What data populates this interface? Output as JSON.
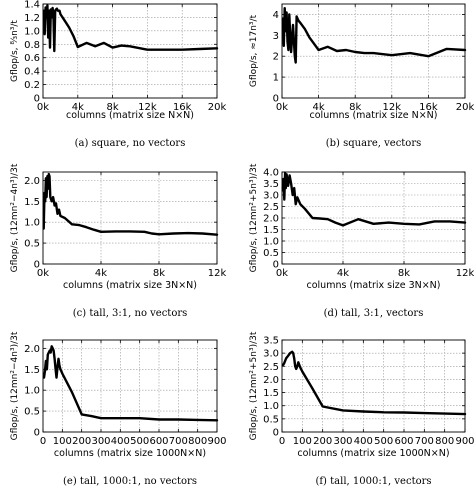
{
  "chart_data": [
    {
      "type": "line",
      "caption": "(a) square, no vectors",
      "ylabel": "Gflop/s,  ⁸⁄₃n³/t",
      "xlabel": "columns (matrix size N×N)",
      "xlim": [
        0,
        20000
      ],
      "ylim": [
        0,
        1.4
      ],
      "xticks": [
        0,
        4000,
        8000,
        12000,
        16000,
        20000
      ],
      "xtick_labels": [
        "0k",
        "4k",
        "8k",
        "12k",
        "16k",
        "20k"
      ],
      "yticks": [
        0,
        0.2,
        0.4,
        0.6,
        0.8,
        1.0,
        1.2,
        1.4
      ],
      "ytick_labels": [
        "0",
        "0.2",
        "0.4",
        "0.6",
        "0.8",
        "1.0",
        "1.2",
        "1.4"
      ],
      "grid": true,
      "x": [
        100,
        200,
        300,
        400,
        500,
        600,
        700,
        800,
        900,
        1000,
        1100,
        1200,
        1300,
        1400,
        1500,
        1600,
        1700,
        1800,
        1900,
        2000,
        2500,
        3000,
        3500,
        4000,
        5000,
        6000,
        7000,
        8000,
        9000,
        10000,
        12000,
        14000,
        16000,
        18000,
        20000
      ],
      "y": [
        1.3,
        0.95,
        1.35,
        1.2,
        1.38,
        0.9,
        1.3,
        0.75,
        1.32,
        1.2,
        1.34,
        1.25,
        0.7,
        1.3,
        1.32,
        1.33,
        1.3,
        1.3,
        1.3,
        1.25,
        1.15,
        1.05,
        0.92,
        0.76,
        0.82,
        0.77,
        0.82,
        0.75,
        0.78,
        0.77,
        0.72,
        0.72,
        0.72,
        0.73,
        0.74
      ]
    },
    {
      "type": "line",
      "caption": "(b) square, vectors",
      "ylabel": "Gflop/s,  ≈17n³/t",
      "xlabel": "columns (matrix size N×N)",
      "xlim": [
        0,
        20000
      ],
      "ylim": [
        0,
        4.5
      ],
      "xticks": [
        0,
        4000,
        8000,
        12000,
        16000,
        20000
      ],
      "xtick_labels": [
        "0k",
        "4k",
        "8k",
        "12k",
        "16k",
        "20k"
      ],
      "yticks": [
        0,
        1,
        2,
        3,
        4
      ],
      "ytick_labels": [
        "0",
        "1",
        "2",
        "3",
        "4"
      ],
      "grid": true,
      "x": [
        100,
        200,
        300,
        400,
        500,
        600,
        700,
        800,
        900,
        1000,
        1200,
        1400,
        1500,
        1600,
        1800,
        2000,
        2500,
        3000,
        3500,
        4000,
        5000,
        6000,
        7000,
        8000,
        9000,
        10000,
        12000,
        14000,
        16000,
        18000,
        20000
      ],
      "y": [
        3.8,
        2.5,
        4.3,
        3.2,
        4.1,
        2.7,
        2.3,
        4.0,
        3.0,
        2.2,
        3.5,
        2.0,
        1.7,
        3.9,
        3.7,
        3.6,
        3.3,
        2.9,
        2.6,
        2.3,
        2.45,
        2.25,
        2.3,
        2.2,
        2.15,
        2.15,
        2.05,
        2.15,
        2.0,
        2.35,
        2.3
      ]
    },
    {
      "type": "line",
      "caption": "(c) tall, 3:1, no vectors",
      "ylabel": "Gflop/s,  (12mn²−4n³)/3t",
      "xlabel": "columns (matrix size 3N×N)",
      "xlim": [
        0,
        12000
      ],
      "ylim": [
        0,
        2.2
      ],
      "xticks": [
        0,
        4000,
        8000,
        12000
      ],
      "xtick_labels": [
        "0k",
        "4k",
        "8k",
        "12k"
      ],
      "yticks": [
        0,
        0.5,
        1.0,
        1.5,
        2.0
      ],
      "ytick_labels": [
        "0",
        "0.5",
        "1.0",
        "1.5",
        "2.0"
      ],
      "grid": true,
      "x": [
        50,
        100,
        150,
        200,
        250,
        300,
        350,
        400,
        450,
        500,
        600,
        700,
        800,
        900,
        1000,
        1100,
        1200,
        1500,
        2000,
        2500,
        3000,
        3500,
        4000,
        5000,
        6000,
        7000,
        7500,
        8000,
        9000,
        10000,
        11000,
        12000
      ],
      "y": [
        0.85,
        1.7,
        1.5,
        2.05,
        1.6,
        2.1,
        1.8,
        2.15,
        2.1,
        1.6,
        1.5,
        1.6,
        1.4,
        1.45,
        1.2,
        1.3,
        1.15,
        1.1,
        0.95,
        0.93,
        0.88,
        0.82,
        0.77,
        0.78,
        0.78,
        0.77,
        0.73,
        0.71,
        0.73,
        0.74,
        0.73,
        0.7
      ]
    },
    {
      "type": "line",
      "caption": "(d) tall, 3:1, vectors",
      "ylabel": "Gflop/s,  (12mn²+5n³)/3t",
      "xlabel": "columns (matrix size 3N×N)",
      "xlim": [
        0,
        12000
      ],
      "ylim": [
        0,
        4.0
      ],
      "xticks": [
        0,
        4000,
        8000,
        12000
      ],
      "xtick_labels": [
        "0k",
        "4k",
        "8k",
        "12k"
      ],
      "yticks": [
        0,
        0.5,
        1.0,
        1.5,
        2.0,
        2.5,
        3.0,
        3.5,
        4.0
      ],
      "ytick_labels": [
        "0",
        "0.5",
        "1.0",
        "1.5",
        "2.0",
        "2.5",
        "3.0",
        "3.5",
        "4.0"
      ],
      "grid": true,
      "x": [
        50,
        100,
        150,
        200,
        250,
        300,
        400,
        500,
        600,
        700,
        800,
        900,
        1000,
        1200,
        1500,
        2000,
        2500,
        3000,
        3500,
        4000,
        5000,
        6000,
        7000,
        8000,
        9000,
        10000,
        11000,
        12000
      ],
      "y": [
        3.2,
        3.7,
        2.8,
        3.95,
        3.3,
        3.9,
        3.4,
        3.85,
        3.5,
        3.0,
        3.3,
        2.6,
        2.9,
        2.6,
        2.4,
        2.0,
        1.98,
        1.95,
        1.8,
        1.68,
        1.95,
        1.75,
        1.8,
        1.75,
        1.72,
        1.85,
        1.85,
        1.8
      ]
    },
    {
      "type": "line",
      "caption": "(e) tall, 1000:1, no vectors",
      "ylabel": "Gflop/s,  (12mn²−4n³)/3t",
      "xlabel": "columns (matrix size 1000N×N)",
      "xlim": [
        0,
        900
      ],
      "ylim": [
        0,
        2.2
      ],
      "xticks": [
        0,
        100,
        200,
        300,
        400,
        500,
        600,
        700,
        800,
        900
      ],
      "xtick_labels": [
        "0",
        "100",
        "200",
        "300",
        "400",
        "500",
        "600",
        "700",
        "800",
        "900"
      ],
      "yticks": [
        0,
        0.5,
        1.0,
        1.5,
        2.0
      ],
      "ytick_labels": [
        "0",
        "0.5",
        "1.0",
        "1.5",
        "2.0"
      ],
      "grid": true,
      "x": [
        5,
        10,
        15,
        20,
        25,
        30,
        35,
        40,
        45,
        50,
        55,
        60,
        65,
        70,
        75,
        80,
        85,
        90,
        95,
        100,
        150,
        200,
        250,
        300,
        400,
        500,
        600,
        700,
        800,
        900
      ],
      "y": [
        1.3,
        1.45,
        1.7,
        1.5,
        1.85,
        1.9,
        1.95,
        1.9,
        2.05,
        2.0,
        1.95,
        1.75,
        1.5,
        1.3,
        1.55,
        1.75,
        1.6,
        1.5,
        1.45,
        1.4,
        0.95,
        0.42,
        0.38,
        0.33,
        0.33,
        0.33,
        0.3,
        0.3,
        0.29,
        0.28
      ]
    },
    {
      "type": "line",
      "caption": "(f) tall, 1000:1, vectors",
      "ylabel": "Gflop/s,  (12mn²+5n³)/3t",
      "xlabel": "columns (matrix size 1000N×N)",
      "xlim": [
        0,
        900
      ],
      "ylim": [
        0,
        3.5
      ],
      "xticks": [
        0,
        100,
        200,
        300,
        400,
        500,
        600,
        700,
        800,
        900
      ],
      "xtick_labels": [
        "0",
        "100",
        "200",
        "300",
        "400",
        "500",
        "600",
        "700",
        "800",
        "900"
      ],
      "yticks": [
        0,
        0.5,
        1.0,
        1.5,
        2.0,
        2.5,
        3.0,
        3.5
      ],
      "ytick_labels": [
        "0",
        "0.5",
        "1.0",
        "1.5",
        "2.0",
        "2.5",
        "3.0",
        "3.5"
      ],
      "grid": true,
      "x": [
        5,
        10,
        20,
        30,
        40,
        50,
        55,
        60,
        65,
        70,
        75,
        80,
        90,
        100,
        150,
        200,
        300,
        400,
        500,
        600,
        700,
        800,
        900
      ],
      "y": [
        2.55,
        2.6,
        2.8,
        2.9,
        3.0,
        3.05,
        3.0,
        2.8,
        2.5,
        2.4,
        2.5,
        2.65,
        2.45,
        2.3,
        1.65,
        0.97,
        0.82,
        0.78,
        0.75,
        0.74,
        0.72,
        0.7,
        0.68
      ]
    }
  ]
}
